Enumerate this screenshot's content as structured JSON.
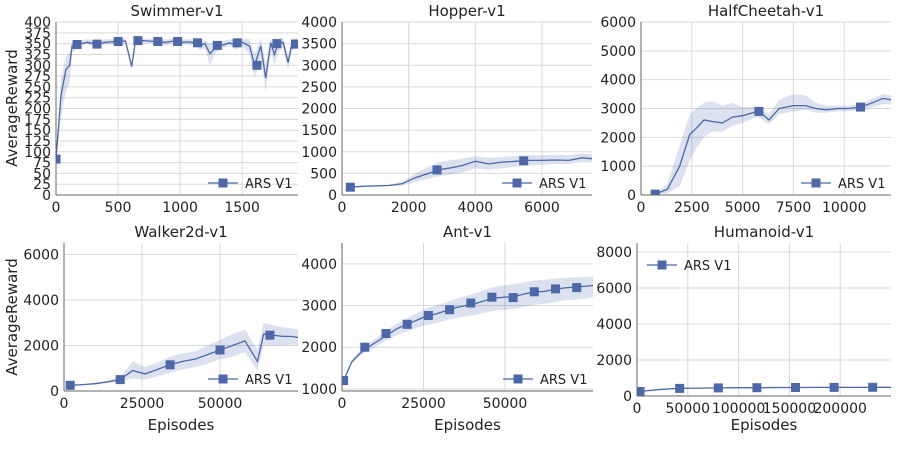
{
  "figure": {
    "shared_xlabel": "Episodes",
    "shared_ylabel": "AverageReward"
  },
  "chart_data": [
    {
      "type": "line",
      "title": "Swimmer-v1",
      "xlabel": "",
      "ylabel": "AverageReward",
      "xlim": [
        0,
        1950
      ],
      "ylim": [
        0,
        400
      ],
      "xticks": [
        0,
        500,
        1000,
        1500
      ],
      "yticks": [
        0,
        25,
        50,
        75,
        100,
        125,
        150,
        175,
        200,
        225,
        250,
        275,
        300,
        325,
        350,
        375,
        400
      ],
      "grid": true,
      "legend": "bottom-right",
      "series": [
        {
          "name": "ARS V1",
          "color": "#4c68a8",
          "x": [
            0,
            40,
            80,
            110,
            130,
            170,
            200,
            250,
            330,
            400,
            480,
            560,
            610,
            640,
            700,
            800,
            880,
            950,
            1000,
            1070,
            1130,
            1160,
            1200,
            1240,
            1290,
            1350,
            1400,
            1450,
            1500,
            1560,
            1600,
            1650,
            1690,
            1730,
            1760,
            1790,
            1830,
            1870,
            1900,
            1950
          ],
          "y": [
            83,
            230,
            290,
            300,
            345,
            348,
            350,
            353,
            349,
            353,
            355,
            356,
            297,
            355,
            357,
            355,
            353,
            356,
            353,
            354,
            352,
            346,
            350,
            327,
            342,
            347,
            352,
            346,
            353,
            344,
            300,
            345,
            270,
            352,
            325,
            350,
            353,
            306,
            349,
            352
          ],
          "lower": [
            83,
            180,
            240,
            260,
            330,
            338,
            345,
            348,
            342,
            348,
            350,
            350,
            290,
            349,
            352,
            350,
            346,
            350,
            348,
            348,
            345,
            335,
            340,
            300,
            330,
            340,
            345,
            335,
            345,
            325,
            270,
            320,
            240,
            335,
            300,
            330,
            340,
            290,
            335,
            340
          ],
          "upper": [
            83,
            270,
            320,
            330,
            355,
            356,
            358,
            360,
            356,
            360,
            361,
            362,
            305,
            361,
            362,
            361,
            360,
            362,
            360,
            360,
            359,
            355,
            358,
            350,
            354,
            356,
            360,
            356,
            361,
            360,
            325,
            362,
            300,
            362,
            345,
            362,
            363,
            320,
            360,
            362
          ],
          "marked_points": [
            {
              "x": 0,
              "y": 83
            },
            {
              "x": 170,
              "y": 348
            },
            {
              "x": 330,
              "y": 349
            },
            {
              "x": 500,
              "y": 355
            },
            {
              "x": 660,
              "y": 357
            },
            {
              "x": 820,
              "y": 355
            },
            {
              "x": 980,
              "y": 355
            },
            {
              "x": 1140,
              "y": 352
            },
            {
              "x": 1300,
              "y": 346
            },
            {
              "x": 1460,
              "y": 352
            },
            {
              "x": 1620,
              "y": 300
            },
            {
              "x": 1780,
              "y": 350
            },
            {
              "x": 1930,
              "y": 349
            }
          ]
        }
      ]
    },
    {
      "type": "line",
      "title": "Hopper-v1",
      "xlabel": "",
      "ylabel": "",
      "xlim": [
        0,
        7500
      ],
      "ylim": [
        0,
        4000
      ],
      "xticks": [
        0,
        2000,
        4000,
        6000
      ],
      "yticks": [
        0,
        500,
        1000,
        1500,
        2000,
        2500,
        3000,
        3500,
        4000
      ],
      "grid": true,
      "legend": "bottom-right",
      "series": [
        {
          "name": "ARS V1",
          "color": "#4c68a8",
          "x": [
            250,
            600,
            1000,
            1400,
            1800,
            2200,
            2600,
            2900,
            3200,
            3600,
            4000,
            4400,
            4800,
            5200,
            5600,
            6000,
            6400,
            6800,
            7200,
            7500
          ],
          "y": [
            180,
            200,
            210,
            220,
            260,
            400,
            500,
            580,
            620,
            680,
            780,
            720,
            760,
            780,
            800,
            800,
            810,
            800,
            860,
            840
          ],
          "lower": [
            180,
            190,
            195,
            200,
            220,
            300,
            380,
            430,
            470,
            520,
            620,
            580,
            620,
            650,
            680,
            700,
            720,
            720,
            760,
            750
          ],
          "upper": [
            180,
            210,
            225,
            240,
            300,
            500,
            650,
            760,
            800,
            840,
            900,
            860,
            880,
            900,
            920,
            920,
            930,
            920,
            960,
            940
          ],
          "marked_points": [
            {
              "x": 250,
              "y": 180
            },
            {
              "x": 2850,
              "y": 580
            },
            {
              "x": 5450,
              "y": 790
            }
          ]
        }
      ]
    },
    {
      "type": "line",
      "title": "HalfCheetah-v1",
      "xlabel": "",
      "ylabel": "",
      "xlim": [
        0,
        12300
      ],
      "ylim": [
        0,
        6000
      ],
      "xticks": [
        0,
        2500,
        5000,
        7500,
        10000
      ],
      "yticks": [
        0,
        1000,
        2000,
        3000,
        4000,
        5000,
        6000
      ],
      "grid": true,
      "legend": "bottom-right",
      "series": [
        {
          "name": "ARS V1",
          "color": "#4c68a8",
          "x": [
            700,
            1300,
            1900,
            2400,
            2700,
            3100,
            3500,
            4000,
            4500,
            5000,
            5500,
            5800,
            6300,
            6800,
            7500,
            8100,
            8600,
            9100,
            9700,
            10200,
            10800,
            11400,
            11900,
            12300
          ],
          "y": [
            30,
            200,
            1000,
            2100,
            2300,
            2600,
            2550,
            2500,
            2700,
            2750,
            2850,
            2900,
            2600,
            3000,
            3100,
            3100,
            3000,
            2950,
            3000,
            3000,
            3050,
            3200,
            3350,
            3300
          ],
          "lower": [
            30,
            50,
            300,
            1200,
            1600,
            2000,
            2200,
            2200,
            2400,
            2500,
            2650,
            2700,
            2450,
            2800,
            2900,
            2950,
            2850,
            2850,
            2900,
            2900,
            2950,
            3050,
            3150,
            3150
          ],
          "upper": [
            30,
            400,
            1700,
            2800,
            3000,
            3200,
            3250,
            3100,
            3200,
            3050,
            3050,
            3050,
            2800,
            3300,
            3500,
            3450,
            3200,
            3100,
            3100,
            3100,
            3150,
            3350,
            3500,
            3450
          ],
          "marked_points": [
            {
              "x": 700,
              "y": 30
            },
            {
              "x": 5800,
              "y": 2900
            },
            {
              "x": 10800,
              "y": 3050
            }
          ]
        }
      ]
    },
    {
      "type": "line",
      "title": "Walker2d-v1",
      "xlabel": "Episodes",
      "ylabel": "AverageReward",
      "xlim": [
        0,
        75000
      ],
      "ylim": [
        0,
        6500
      ],
      "xticks": [
        0,
        25000,
        50000
      ],
      "yticks": [
        0,
        2000,
        4000,
        6000
      ],
      "grid": true,
      "legend": "bottom-right",
      "series": [
        {
          "name": "ARS V1",
          "color": "#4c68a8",
          "x": [
            2000,
            6000,
            10000,
            14000,
            18000,
            22000,
            26000,
            30000,
            34000,
            38000,
            42000,
            46000,
            50000,
            54000,
            58000,
            62000,
            64000,
            67000,
            70000,
            73000,
            75000
          ],
          "y": [
            250,
            280,
            320,
            400,
            500,
            900,
            750,
            950,
            1150,
            1300,
            1400,
            1600,
            1800,
            2000,
            2200,
            1300,
            2500,
            2450,
            2400,
            2400,
            2350
          ],
          "lower": [
            250,
            260,
            290,
            350,
            420,
            550,
            500,
            650,
            800,
            950,
            1050,
            1200,
            1400,
            1500,
            1700,
            900,
            2000,
            2000,
            2000,
            2050,
            2000
          ],
          "upper": [
            250,
            300,
            360,
            460,
            600,
            1300,
            1050,
            1250,
            1500,
            1650,
            1750,
            2000,
            2250,
            2500,
            2700,
            1800,
            3000,
            2900,
            2800,
            2750,
            2700
          ],
          "marked_points": [
            {
              "x": 2000,
              "y": 250
            },
            {
              "x": 18000,
              "y": 500
            },
            {
              "x": 34000,
              "y": 1150
            },
            {
              "x": 50000,
              "y": 1800
            },
            {
              "x": 66000,
              "y": 2450
            }
          ]
        }
      ]
    },
    {
      "type": "line",
      "title": "Ant-v1",
      "xlabel": "Episodes",
      "ylabel": "",
      "xlim": [
        0,
        77000
      ],
      "ylim": [
        950,
        4500
      ],
      "xticks": [
        0,
        25000,
        50000
      ],
      "yticks": [
        1000,
        2000,
        3000,
        4000
      ],
      "grid": true,
      "legend": "bottom-right",
      "series": [
        {
          "name": "ARS V1",
          "color": "#4c68a8",
          "x": [
            500,
            3000,
            5500,
            8000,
            11000,
            14000,
            17000,
            20000,
            23000,
            26000,
            29000,
            32000,
            35000,
            38000,
            41000,
            44000,
            47000,
            50000,
            53000,
            56000,
            59000,
            62000,
            65000,
            68000,
            71000,
            74000,
            77000
          ],
          "y": [
            1200,
            1650,
            1850,
            2000,
            2150,
            2300,
            2450,
            2550,
            2650,
            2750,
            2800,
            2880,
            2950,
            3000,
            3050,
            3120,
            3180,
            3200,
            3220,
            3280,
            3320,
            3340,
            3380,
            3420,
            3440,
            3460,
            3480
          ],
          "lower": [
            1200,
            1600,
            1800,
            1920,
            2050,
            2180,
            2300,
            2380,
            2460,
            2540,
            2580,
            2650,
            2700,
            2740,
            2780,
            2830,
            2880,
            2900,
            2920,
            2970,
            3020,
            3040,
            3080,
            3120,
            3140,
            3160,
            3200
          ],
          "upper": [
            1200,
            1700,
            1920,
            2080,
            2250,
            2420,
            2580,
            2700,
            2820,
            2940,
            3000,
            3080,
            3160,
            3230,
            3300,
            3380,
            3450,
            3490,
            3520,
            3560,
            3600,
            3620,
            3640,
            3660,
            3680,
            3680,
            3700
          ],
          "marked_points": [
            {
              "x": 500,
              "y": 1200
            },
            {
              "x": 7000,
              "y": 2000
            },
            {
              "x": 13500,
              "y": 2330
            },
            {
              "x": 20000,
              "y": 2550
            },
            {
              "x": 26500,
              "y": 2760
            },
            {
              "x": 33000,
              "y": 2900
            },
            {
              "x": 39500,
              "y": 3060
            },
            {
              "x": 46000,
              "y": 3200
            },
            {
              "x": 52500,
              "y": 3190
            },
            {
              "x": 59000,
              "y": 3330
            },
            {
              "x": 65500,
              "y": 3400
            },
            {
              "x": 72000,
              "y": 3430
            }
          ]
        }
      ]
    },
    {
      "type": "line",
      "title": "Humanoid-v1",
      "xlabel": "Episodes",
      "ylabel": "",
      "xlim": [
        0,
        250000
      ],
      "ylim": [
        0,
        8500
      ],
      "xticks": [
        0,
        50000,
        100000,
        150000,
        200000
      ],
      "yticks": [
        0,
        2000,
        4000,
        6000,
        8000
      ],
      "grid": true,
      "legend": "top-left",
      "series": [
        {
          "name": "ARS V1",
          "color": "#4c68a8",
          "x": [
            3000,
            20000,
            40000,
            60000,
            80000,
            100000,
            120000,
            140000,
            160000,
            180000,
            200000,
            220000,
            240000,
            250000
          ],
          "y": [
            250,
            350,
            420,
            440,
            450,
            460,
            460,
            470,
            470,
            475,
            480,
            480,
            485,
            485
          ],
          "lower": [
            250,
            320,
            390,
            410,
            420,
            430,
            430,
            440,
            440,
            445,
            450,
            450,
            455,
            455
          ],
          "upper": [
            250,
            380,
            450,
            470,
            480,
            490,
            490,
            500,
            500,
            505,
            510,
            510,
            515,
            515
          ],
          "marked_points": [
            {
              "x": 3000,
              "y": 250
            },
            {
              "x": 42000,
              "y": 420
            },
            {
              "x": 80000,
              "y": 450
            },
            {
              "x": 118000,
              "y": 460
            },
            {
              "x": 156000,
              "y": 470
            },
            {
              "x": 194000,
              "y": 478
            },
            {
              "x": 232000,
              "y": 482
            }
          ]
        }
      ]
    }
  ]
}
